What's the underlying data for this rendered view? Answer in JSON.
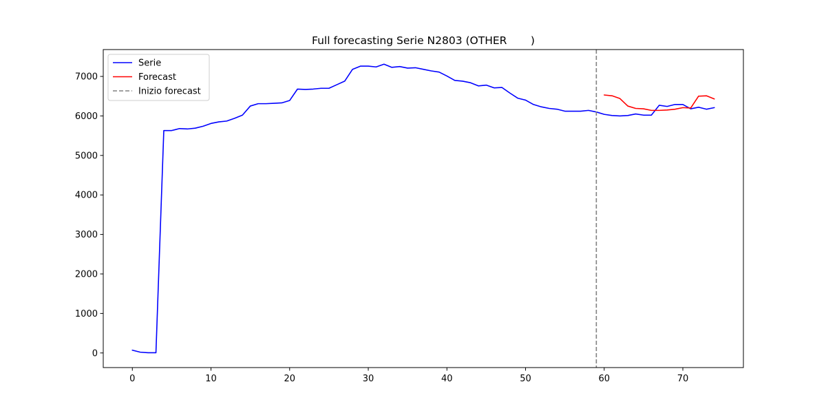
{
  "chart_data": {
    "type": "line",
    "title": "Full forecasting Serie N2803 (OTHER       )",
    "xlabel": "",
    "ylabel": "",
    "xlim": [
      -3.7,
      77.7
    ],
    "ylim": [
      -370,
      7680
    ],
    "xticks": [
      0,
      10,
      20,
      30,
      40,
      50,
      60,
      70
    ],
    "yticks": [
      0,
      1000,
      2000,
      3000,
      4000,
      5000,
      6000,
      7000
    ],
    "grid": false,
    "legend_position": "top-left",
    "forecast_start": 59,
    "series": [
      {
        "name": "Serie",
        "color": "#0000ff",
        "x": [
          0,
          1,
          2,
          3,
          4,
          5,
          6,
          7,
          8,
          9,
          10,
          11,
          12,
          13,
          14,
          15,
          16,
          17,
          18,
          19,
          20,
          21,
          22,
          23,
          24,
          25,
          26,
          27,
          28,
          29,
          30,
          31,
          32,
          33,
          34,
          35,
          36,
          37,
          38,
          39,
          40,
          41,
          42,
          43,
          44,
          45,
          46,
          47,
          48,
          49,
          50,
          51,
          52,
          53,
          54,
          55,
          56,
          57,
          58,
          59,
          60,
          61,
          62,
          63,
          64,
          65,
          66,
          67,
          68,
          69,
          70,
          71,
          72,
          73,
          74
        ],
        "values": [
          70,
          20,
          5,
          5,
          5630,
          5630,
          5680,
          5670,
          5690,
          5740,
          5810,
          5850,
          5870,
          5940,
          6020,
          6250,
          6310,
          6310,
          6320,
          6330,
          6390,
          6680,
          6670,
          6680,
          6700,
          6700,
          6790,
          6880,
          7180,
          7260,
          7260,
          7240,
          7310,
          7230,
          7250,
          7210,
          7220,
          7180,
          7140,
          7110,
          7010,
          6900,
          6880,
          6840,
          6760,
          6780,
          6710,
          6720,
          6580,
          6450,
          6400,
          6290,
          6230,
          6190,
          6170,
          6120,
          6120,
          6120,
          6140,
          6100,
          6040,
          6010,
          6000,
          6010,
          6050,
          6020,
          6020,
          6270,
          6240,
          6290,
          6290,
          6180,
          6220,
          6170,
          6210
        ]
      },
      {
        "name": "Forecast",
        "color": "#ff0000",
        "x": [
          60,
          61,
          62,
          63,
          64,
          65,
          66,
          67,
          68,
          69,
          70,
          71,
          72,
          73,
          74
        ],
        "values": [
          6530,
          6510,
          6440,
          6250,
          6190,
          6180,
          6140,
          6140,
          6150,
          6170,
          6210,
          6200,
          6500,
          6510,
          6430
        ]
      }
    ],
    "legend": [
      {
        "label": "Serie",
        "color": "#0000ff",
        "style": "solid"
      },
      {
        "label": "Forecast",
        "color": "#ff0000",
        "style": "solid"
      },
      {
        "label": "Inizio forecast",
        "color": "#808080",
        "style": "dashed"
      }
    ]
  }
}
